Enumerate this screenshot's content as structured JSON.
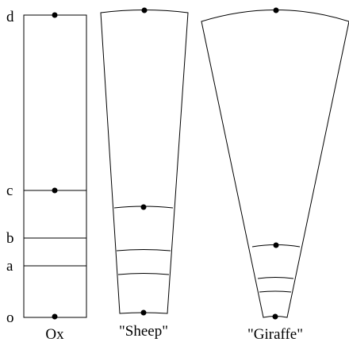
{
  "axis_labels": {
    "d": "d",
    "c": "c",
    "b": "b",
    "a": "a",
    "o": "o"
  },
  "shapes": [
    {
      "key": "ox",
      "label": "Ox"
    },
    {
      "key": "sheep",
      "label": "\"Sheep\""
    },
    {
      "key": "giraffe",
      "label": "\"Giraffe\""
    }
  ]
}
